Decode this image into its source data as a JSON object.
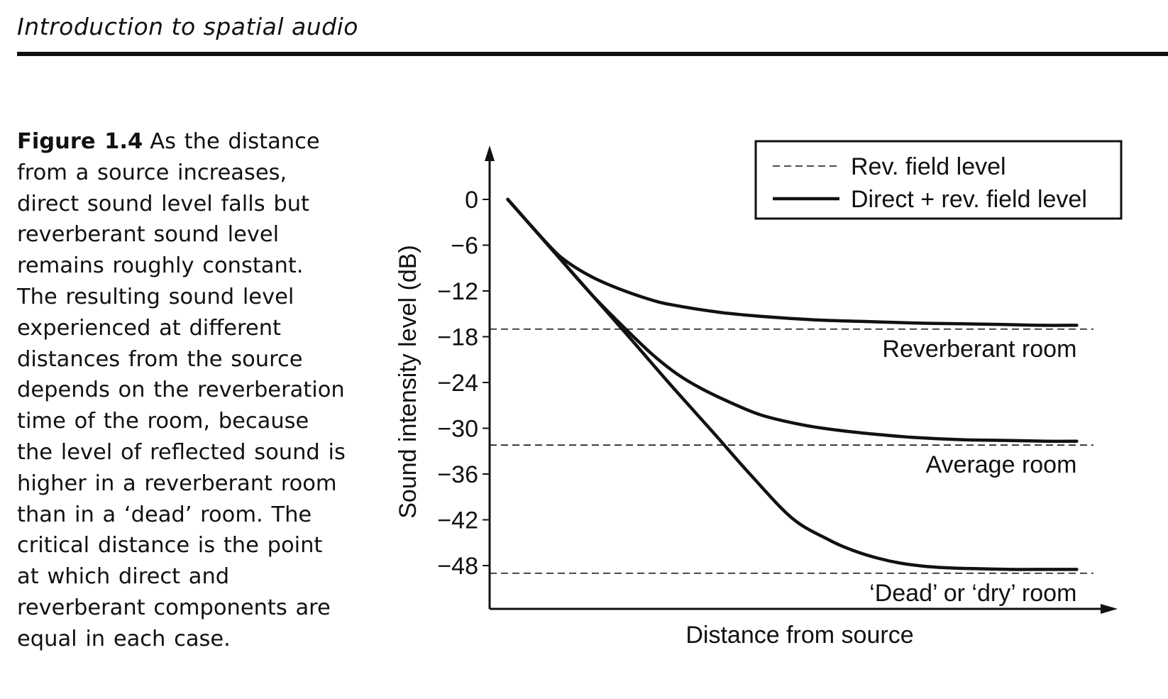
{
  "page": {
    "running_head": "Introduction to spatial audio"
  },
  "caption": {
    "label": "Figure 1.4",
    "text": "As the distance from a source increases, direct sound level falls but reverberant sound level remains roughly constant. The resulting sound level experienced at different distances from the source depends on the reverberation time of the room, because the level of reflected sound is higher in a reverberant room than in a ‘dead’ room. The critical distance is the point at which direct and reverberant components are equal in each case."
  },
  "chart_data": {
    "type": "line",
    "title": "",
    "xlabel": "Distance from source",
    "ylabel": "Sound intensity level (dB)",
    "x_ticks_shown": false,
    "xlim": [
      0,
      100
    ],
    "ylim": [
      -54,
      7
    ],
    "yticks": [
      0,
      -6,
      -12,
      -18,
      -24,
      -30,
      -36,
      -42,
      -48
    ],
    "ytick_labels": [
      "0",
      "−6",
      "−12",
      "−18",
      "−24",
      "−30",
      "−36",
      "−42",
      "−48"
    ],
    "grid": false,
    "legend": {
      "placement": "top-right",
      "entries": [
        {
          "label": "Rev. field level",
          "style": "dashed"
        },
        {
          "label": "Direct + rev. field level",
          "style": "solid"
        }
      ]
    },
    "reverberant_field_levels": [
      {
        "room": "Reverberant room",
        "level": -17
      },
      {
        "room": "Average room",
        "level": -32.2
      },
      {
        "room": "‘Dead’ or ‘dry’ room",
        "level": -49
      }
    ],
    "series": [
      {
        "name": "Reverberant room",
        "label": "Reverberant room",
        "x": [
          3,
          10,
          13,
          17,
          21,
          26,
          30,
          38,
          46,
          54,
          62,
          70,
          78,
          85,
          91,
          97
        ],
        "y": [
          0,
          -6.2,
          -8.3,
          -10.2,
          -11.6,
          -13.0,
          -13.8,
          -14.8,
          -15.4,
          -15.8,
          -16.0,
          -16.2,
          -16.3,
          -16.4,
          -16.5,
          -16.5
        ]
      },
      {
        "name": "Average room",
        "label": "Average room",
        "x": [
          3,
          10,
          17,
          23,
          27,
          31,
          35,
          40,
          45,
          52,
          58,
          64,
          70,
          78,
          86,
          92,
          97
        ],
        "y": [
          0,
          -6.3,
          -12.6,
          -17.4,
          -20.4,
          -22.9,
          -24.8,
          -26.7,
          -28.3,
          -29.6,
          -30.3,
          -30.8,
          -31.2,
          -31.5,
          -31.6,
          -31.7,
          -31.7
        ]
      },
      {
        "name": "‘Dead’ or ‘dry’ room",
        "label": "‘Dead’ or ‘dry’ room",
        "x": [
          3,
          10,
          17,
          23,
          30,
          37,
          43,
          50,
          56,
          60,
          64,
          68,
          72,
          76,
          80,
          86,
          92,
          97
        ],
        "y": [
          0,
          -6.3,
          -12.6,
          -18.0,
          -24.4,
          -30.6,
          -36.0,
          -41.8,
          -44.6,
          -46.0,
          -47.0,
          -47.7,
          -48.1,
          -48.3,
          -48.4,
          -48.5,
          -48.5,
          -48.5
        ]
      }
    ]
  }
}
